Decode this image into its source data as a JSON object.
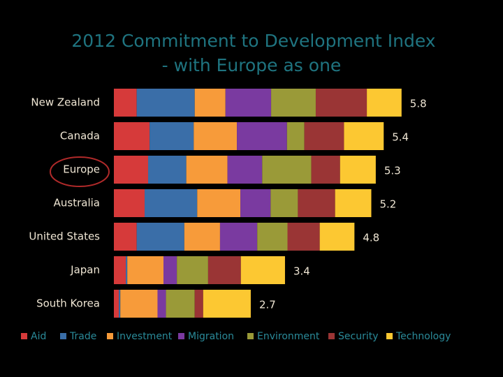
{
  "chart_data": {
    "type": "stacked_bar_horizontal",
    "title": "2012 Commitment to Development Index",
    "subtitle": "- with Europe as one",
    "categories": [
      "New Zealand",
      "Canada",
      "Europe",
      "Australia",
      "United States",
      "Japan",
      "South Korea"
    ],
    "series": [
      {
        "name": "Aid",
        "color": "#d63a3a",
        "values": [
          0.46,
          0.72,
          0.69,
          0.62,
          0.46,
          0.24,
          0.1
        ]
      },
      {
        "name": "Trade",
        "color": "#3a6ea8",
        "values": [
          1.17,
          0.89,
          0.77,
          1.06,
          0.96,
          0.03,
          0.03
        ]
      },
      {
        "name": "Investment",
        "color": "#f79b3a",
        "values": [
          0.62,
          0.87,
          0.83,
          0.87,
          0.72,
          0.73,
          0.75
        ]
      },
      {
        "name": "Migration",
        "color": "#7a3aa0",
        "values": [
          0.92,
          1.01,
          0.7,
          0.61,
          0.75,
          0.27,
          0.17
        ]
      },
      {
        "name": "Environment",
        "color": "#9a9a38",
        "values": [
          0.9,
          0.35,
          0.99,
          0.55,
          0.61,
          0.63,
          0.58
        ]
      },
      {
        "name": "Security",
        "color": "#9a3535",
        "values": [
          1.03,
          0.8,
          0.58,
          0.75,
          0.65,
          0.66,
          0.17
        ]
      },
      {
        "name": "Technology",
        "color": "#fcc832",
        "values": [
          0.7,
          0.8,
          0.72,
          0.73,
          0.7,
          0.89,
          0.96
        ]
      }
    ],
    "totals": [
      5.8,
      5.4,
      5.3,
      5.2,
      4.8,
      3.4,
      2.7
    ],
    "xlim": [
      0,
      7
    ]
  }
}
